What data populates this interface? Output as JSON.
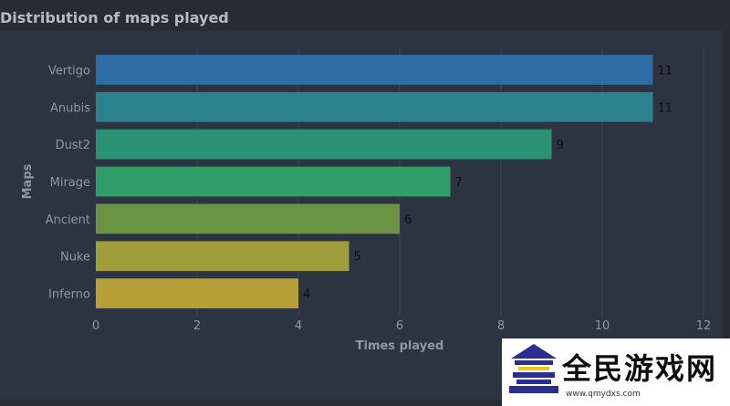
{
  "page": {
    "title": "Distribution of maps played"
  },
  "chart_data": {
    "type": "bar",
    "orientation": "horizontal",
    "categories": [
      "Vertigo",
      "Anubis",
      "Dust2",
      "Mirage",
      "Ancient",
      "Nuke",
      "Inferno"
    ],
    "values": [
      11,
      11,
      9,
      7,
      6,
      5,
      4
    ],
    "colors": [
      "#2e6da4",
      "#2b828e",
      "#2a9173",
      "#319e6a",
      "#6a9443",
      "#a09e3c",
      "#b8a037"
    ],
    "title": "Distribution of maps played",
    "xlabel": "Times played",
    "ylabel": "Maps",
    "xlim": [
      0,
      12
    ],
    "xticks": [
      0,
      2,
      4,
      6,
      8,
      10,
      12
    ],
    "grid": true,
    "legend": "none"
  },
  "watermark": {
    "text": "全民游戏网",
    "url": "www.qmydxs.com"
  }
}
